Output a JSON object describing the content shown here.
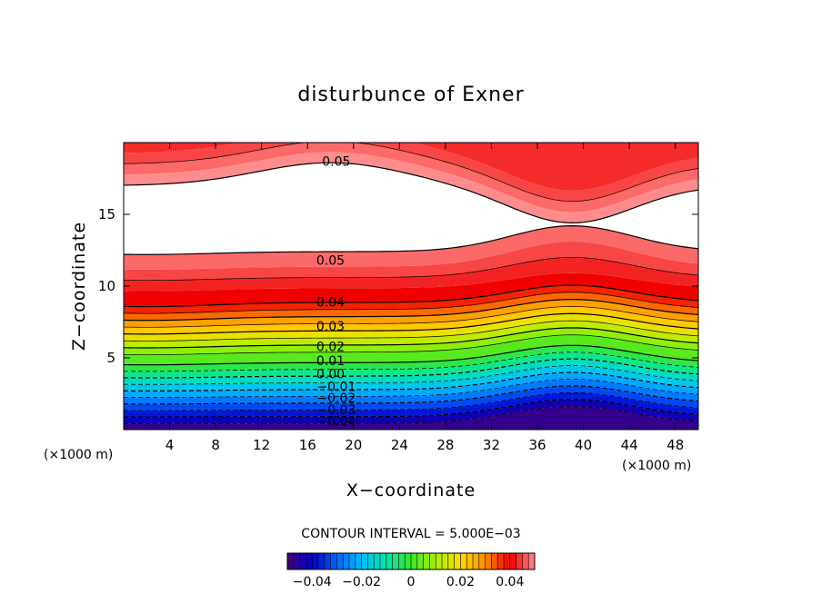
{
  "chart_data": {
    "type": "contour",
    "title": "disturbunce of Exner",
    "xlabel": "X−coordinate",
    "ylabel": "Z−coordinate",
    "x_unit_left": "(×1000 m)",
    "x_unit_right": "(×1000 m)",
    "xlim": [
      0,
      50
    ],
    "ylim": [
      0,
      20
    ],
    "x_ticks": [
      4,
      8,
      12,
      16,
      20,
      24,
      28,
      32,
      36,
      40,
      44,
      48
    ],
    "y_ticks": [
      5,
      10,
      15
    ],
    "contour_interval_text": "CONTOUR INTERVAL = 5.000E−03",
    "contour_interval": 0.005,
    "value_range": [
      -0.05,
      0.05
    ],
    "contour_labels": [
      {
        "text": "0.05",
        "x": 18.5,
        "z": 18.7
      },
      {
        "text": "0.05",
        "x": 18.0,
        "z": 11.8
      },
      {
        "text": "0.04",
        "x": 18.0,
        "z": 8.9
      },
      {
        "text": "0.03",
        "x": 18.0,
        "z": 7.2
      },
      {
        "text": "0.02",
        "x": 18.0,
        "z": 5.8
      },
      {
        "text": "0.01",
        "x": 18.0,
        "z": 4.8
      },
      {
        "text": "0.00",
        "x": 18.0,
        "z": 3.9
      },
      {
        "text": "−0.01",
        "x": 18.5,
        "z": 3.0
      },
      {
        "text": "−0.02",
        "x": 18.5,
        "z": 2.2
      },
      {
        "text": "−0.03",
        "x": 18.5,
        "z": 1.4
      },
      {
        "text": "−0.04",
        "x": 18.5,
        "z": 0.6
      }
    ],
    "colorbar_ticks": [
      "−0.04",
      "−0.02",
      "0",
      "0.02",
      "0.04"
    ],
    "colorbar_tick_values": [
      -0.04,
      -0.02,
      0,
      0.02,
      0.04
    ]
  }
}
